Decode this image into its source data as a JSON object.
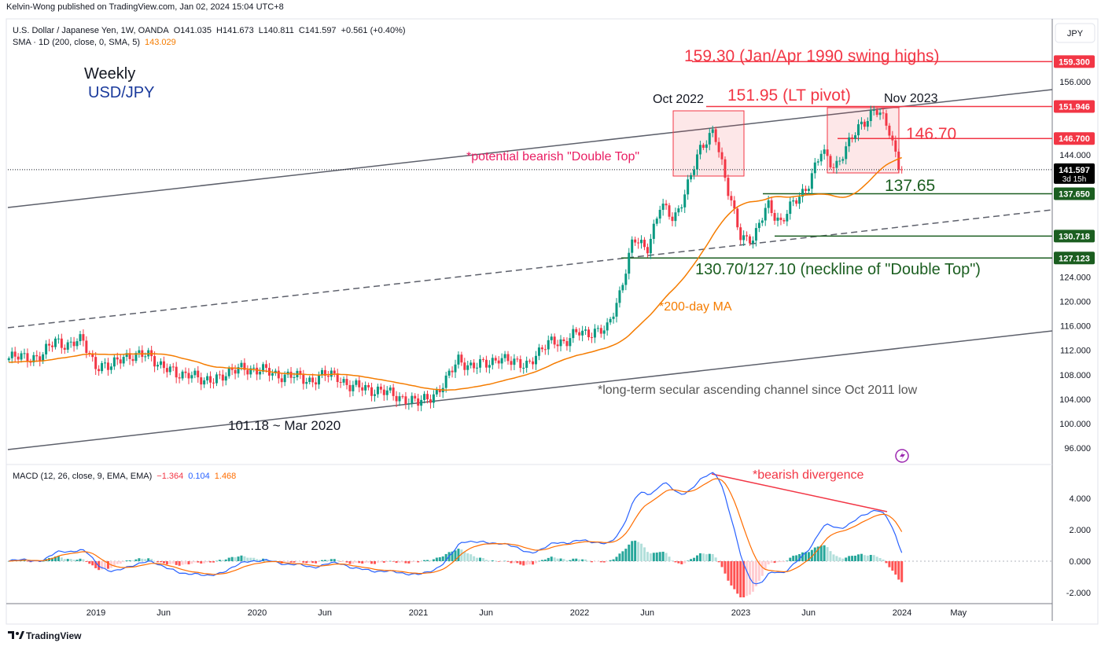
{
  "publisher_line": "Kelvin-Wong published on TradingView.com, Jan 02, 2024 15:04 UTC+8",
  "legend": {
    "symbol": "U.S. Dollar / Japanese Yen, 1W, OANDA",
    "open": "O141.035",
    "high": "H141.673",
    "low": "L140.811",
    "close": "C141.597",
    "change": "+0.561 (+0.40%)",
    "sma_label": "SMA · 1D (200, close, 0, SMA, 5)",
    "sma_value": "143.029",
    "macd_label": "MACD (12, 26, close, 9, EMA, EMA)",
    "macd_hist": "−1.364",
    "macd_line": "0.104",
    "macd_signal": "1.468"
  },
  "currency": "JPY",
  "colors": {
    "up": "#089981",
    "down": "#f23645",
    "sma": "#f57c00",
    "macd": "#2962ff",
    "signal": "#ff6d00",
    "red": "#f23645",
    "green": "#1b5e20"
  },
  "chart_data": {
    "type": "candlestick",
    "title": "Weekly USD/JPY",
    "monthly_closes": {
      "start": "2018-06",
      "values": [
        110.7,
        111.0,
        111.0,
        113.7,
        112.9,
        113.5,
        109.7,
        108.9,
        111.4,
        110.8,
        111.4,
        109.3,
        107.8,
        108.7,
        106.3,
        108.0,
        108.0,
        109.5,
        108.6,
        108.4,
        107.9,
        107.5,
        107.2,
        107.8,
        107.9,
        105.8,
        105.9,
        105.5,
        104.6,
        104.3,
        103.2,
        104.7,
        106.6,
        110.7,
        109.3,
        109.6,
        111.1,
        109.7,
        110.0,
        111.3,
        114.0,
        113.2,
        115.1,
        115.1,
        115.0,
        121.7,
        130.0,
        128.7,
        135.7,
        133.3,
        139.0,
        144.7,
        148.7,
        138.0,
        131.0,
        130.0,
        136.2,
        132.8,
        136.3,
        139.3,
        144.3,
        142.3,
        145.5,
        149.3,
        151.6,
        148.2,
        141.0,
        141.6
      ]
    },
    "y_ticks": [
      96,
      100,
      104,
      108,
      112,
      116,
      120,
      124,
      128,
      132,
      136,
      140,
      144,
      148,
      152,
      156,
      160
    ],
    "y_range": [
      94,
      162
    ],
    "x_ticks": [
      {
        "t": 2019.0,
        "label": "2019"
      },
      {
        "t": 2019.42,
        "label": "Jun"
      },
      {
        "t": 2020.0,
        "label": "2020"
      },
      {
        "t": 2020.42,
        "label": "Jun"
      },
      {
        "t": 2021.0,
        "label": "2021"
      },
      {
        "t": 2021.42,
        "label": "Jun"
      },
      {
        "t": 2022.0,
        "label": "2022"
      },
      {
        "t": 2022.42,
        "label": "Jun"
      },
      {
        "t": 2023.0,
        "label": "2023"
      },
      {
        "t": 2023.42,
        "label": "Jun"
      },
      {
        "t": 2024.0,
        "label": "2024"
      },
      {
        "t": 2024.35,
        "label": "May"
      }
    ],
    "macd_ticks": [
      {
        "v": 4,
        "label": "4.000"
      },
      {
        "v": 2,
        "label": "2.000"
      },
      {
        "v": 0,
        "label": "0.000"
      },
      {
        "v": -2,
        "label": "-2.000"
      }
    ],
    "price_labels": [
      {
        "value": 159.3,
        "text": "159.300",
        "color": "#f23645"
      },
      {
        "value": 151.946,
        "text": "151.946",
        "color": "#f23645"
      },
      {
        "value": 146.7,
        "text": "146.700",
        "color": "#f23645"
      },
      {
        "value": 141.597,
        "text": "141.597",
        "sub": "3d 15h",
        "color": "#000000"
      },
      {
        "value": 137.65,
        "text": "137.650",
        "color": "#1b5e20"
      },
      {
        "value": 130.718,
        "text": "130.718",
        "color": "#1b5e20"
      },
      {
        "value": 127.123,
        "text": "127.123",
        "color": "#1b5e20"
      }
    ],
    "annotations": {
      "weekly": "Weekly",
      "pair": "USD/JPY",
      "swing_highs": "159.30 (Jan/Apr 1990 swing highs)",
      "oct2022": "Oct 2022",
      "lt_pivot": "151.95 (LT pivot)",
      "nov2023": "Nov 2023",
      "level_14670": "146.70",
      "double_top": "*potential bearish \"Double Top\"",
      "level_13765": "137.65",
      "neckline": "130.70/127.10 (neckline of \"Double Top\")",
      "ma200": "*200-day MA",
      "channel": "*long-term secular ascending channel since Oct 2011 low",
      "mar2020": "101.18 ~ Mar 2020",
      "divergence": "*bearish divergence"
    }
  },
  "footer": {
    "brand": "TradingView"
  }
}
